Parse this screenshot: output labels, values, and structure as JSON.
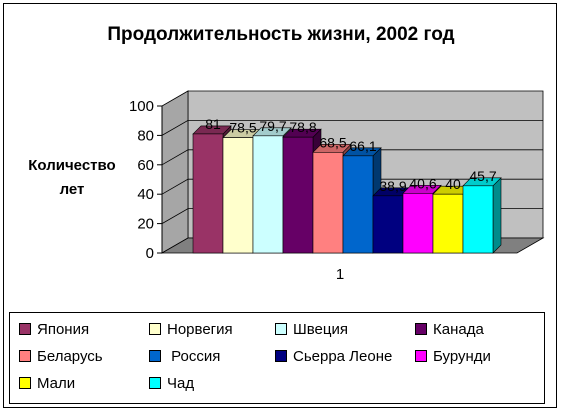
{
  "chart_data": {
    "type": "bar",
    "title": "Продолжительность жизни, 2002 год",
    "ylabel": "Количество лет",
    "xlabel": "",
    "categories": [
      "1"
    ],
    "ylim": [
      0,
      100
    ],
    "yticks": [
      "0",
      "20",
      "40",
      "60",
      "80",
      "100"
    ],
    "grid": true,
    "legend_position": "bottom",
    "series": [
      {
        "name": "Япония",
        "value": 81,
        "label": "81",
        "color": "#993366"
      },
      {
        "name": "Норвегия",
        "value": 78.5,
        "label": "78,5",
        "color": "#ffffcc"
      },
      {
        "name": "Швеция",
        "value": 79.7,
        "label": "79,7",
        "color": "#ccffff"
      },
      {
        "name": "Канада",
        "value": 78.8,
        "label": "78,8",
        "color": "#660066"
      },
      {
        "name": "Беларусь",
        "value": 68.5,
        "label": "68,5",
        "color": "#ff8080"
      },
      {
        "name": " Россия",
        "value": 66.1,
        "label": "66,1",
        "color": "#0066cc"
      },
      {
        "name": "Сьерра Леоне",
        "value": 38.9,
        "label": "38,9",
        "color": "#000080"
      },
      {
        "name": "Бурунди",
        "value": 40.6,
        "label": "40,6",
        "color": "#ff00ff"
      },
      {
        "name": "Мали",
        "value": 40,
        "label": "40",
        "color": "#ffff00"
      },
      {
        "name": "Чад",
        "value": 45.7,
        "label": "45,7",
        "color": "#00ffff"
      }
    ]
  },
  "colors": {
    "wall": "#c0c0c0",
    "floor": "#808080"
  }
}
